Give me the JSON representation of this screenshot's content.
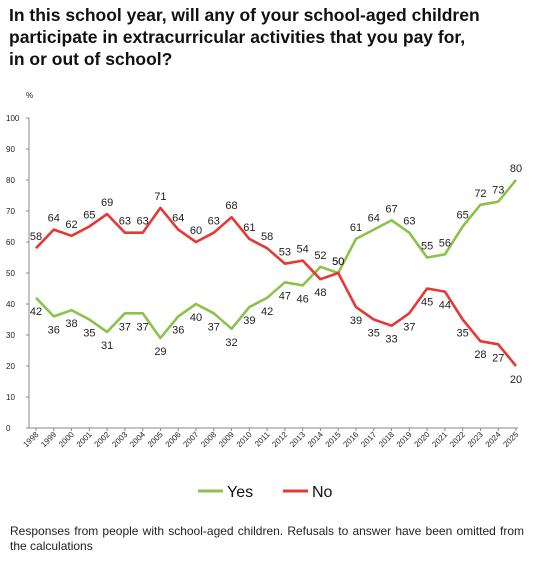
{
  "title_lines": [
    "In this school year, will any of your school-aged children",
    "participate in extracurricular activities that you pay for,",
    "in or out of school?"
  ],
  "footnote": "Responses from people with school-aged children. Refusals to answer have been omitted from the calculations",
  "chart_data": {
    "type": "line",
    "title": "In this school year, will any of your school-aged children participate in extracurricular activities that you pay for, in or out of school?",
    "ylabel": "%",
    "xlabel": "",
    "ylim": [
      0,
      100
    ],
    "yticks": [
      0,
      10,
      20,
      30,
      40,
      50,
      60,
      70,
      80,
      90,
      100
    ],
    "grid": false,
    "legend": "bottom",
    "x": [
      "1998",
      "1999",
      "2000",
      "2001",
      "2002",
      "2003",
      "2004",
      "2005",
      "2006",
      "2007",
      "2008",
      "2009",
      "2010",
      "2011",
      "2012",
      "2013",
      "2014",
      "2015",
      "2016",
      "2017",
      "2018",
      "2019",
      "2020",
      "2021",
      "2022",
      "2023",
      "2024",
      "2025"
    ],
    "series": [
      {
        "name": "Yes",
        "color": "#8bc34a",
        "values": [
          42,
          36,
          38,
          35,
          31,
          37,
          37,
          29,
          36,
          40,
          37,
          32,
          39,
          42,
          47,
          46,
          52,
          50,
          61,
          64,
          67,
          63,
          55,
          56,
          65,
          72,
          73,
          80
        ]
      },
      {
        "name": "No",
        "color": "#e53935",
        "values": [
          58,
          64,
          62,
          65,
          69,
          63,
          63,
          71,
          64,
          60,
          63,
          68,
          61,
          58,
          53,
          54,
          48,
          50,
          39,
          35,
          33,
          37,
          45,
          44,
          35,
          28,
          27,
          20
        ]
      }
    ]
  }
}
